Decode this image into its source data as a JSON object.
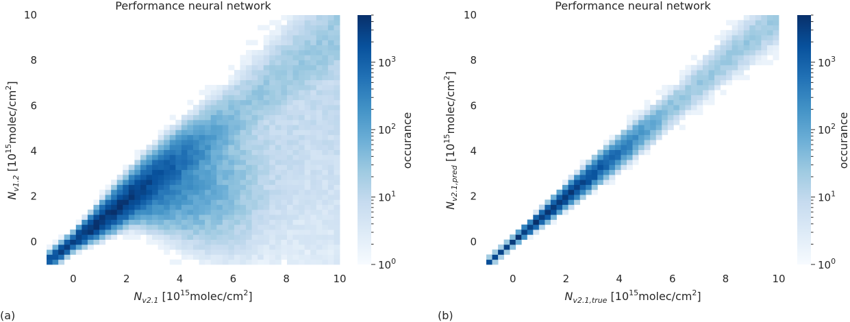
{
  "chart_data": [
    {
      "type": "heatmap",
      "panel_label": "(a)",
      "title": "Performance neural network",
      "xlabel": {
        "sym": "N",
        "sub": "v2.1",
        "unit_pre": " [10",
        "unit_sup": "15",
        "unit_post": "molec/cm",
        "unit_sup2": "2",
        "unit_end": "]"
      },
      "ylabel": {
        "sym": "N",
        "sub": "v1.2",
        "unit_pre": " [10",
        "unit_sup": "15",
        "unit_post": "molec/cm",
        "unit_sup2": "2",
        "unit_end": "]"
      },
      "xlim": [
        -1,
        10
      ],
      "ylim": [
        -1,
        10
      ],
      "xticks": [
        "0",
        "2",
        "4",
        "6",
        "8",
        "10"
      ],
      "yticks": [
        "0",
        "2",
        "4",
        "6",
        "8",
        "10"
      ],
      "colorbar": {
        "label": "occurance",
        "scale": "log",
        "range": [
          1,
          5000
        ],
        "ticks": [
          {
            "base": "10",
            "exp": "0"
          },
          {
            "base": "10",
            "exp": "1"
          },
          {
            "base": "10",
            "exp": "2"
          },
          {
            "base": "10",
            "exp": "3"
          }
        ],
        "colormap": "Blues"
      },
      "density_model": {
        "bins": 50,
        "ridge_slope": 0.92,
        "spread": [
          0.14,
          0.11
        ],
        "peak": [
          1.0,
          1.0
        ],
        "peak_count": 4500,
        "upper_tail": 0.55
      }
    },
    {
      "type": "heatmap",
      "panel_label": "(b)",
      "title": "Performance neural network",
      "xlabel": {
        "sym": "N",
        "sub": "v2.1,true",
        "unit_pre": " [10",
        "unit_sup": "15",
        "unit_post": "molec/cm",
        "unit_sup2": "2",
        "unit_end": "]"
      },
      "ylabel": {
        "sym": "N",
        "sub": "v2.1,pred",
        "unit_pre": " [10",
        "unit_sup": "15",
        "unit_post": "molec/cm",
        "unit_sup2": "2",
        "unit_end": "]"
      },
      "xlim": [
        -1,
        10
      ],
      "ylim": [
        -1,
        10
      ],
      "xticks": [
        "0",
        "2",
        "4",
        "6",
        "8",
        "10"
      ],
      "yticks": [
        "0",
        "2",
        "4",
        "6",
        "8",
        "10"
      ],
      "colorbar": {
        "label": "occurance",
        "scale": "log",
        "range": [
          1,
          5000
        ],
        "ticks": [
          {
            "base": "10",
            "exp": "0"
          },
          {
            "base": "10",
            "exp": "1"
          },
          {
            "base": "10",
            "exp": "2"
          },
          {
            "base": "10",
            "exp": "3"
          }
        ],
        "colormap": "Blues"
      },
      "density_model": {
        "bins": 50,
        "ridge_slope": 1.0,
        "spread": [
          0.07,
          0.05
        ],
        "peak": [
          1.0,
          1.0
        ],
        "peak_count": 4500,
        "upper_tail": 0.0
      }
    }
  ]
}
